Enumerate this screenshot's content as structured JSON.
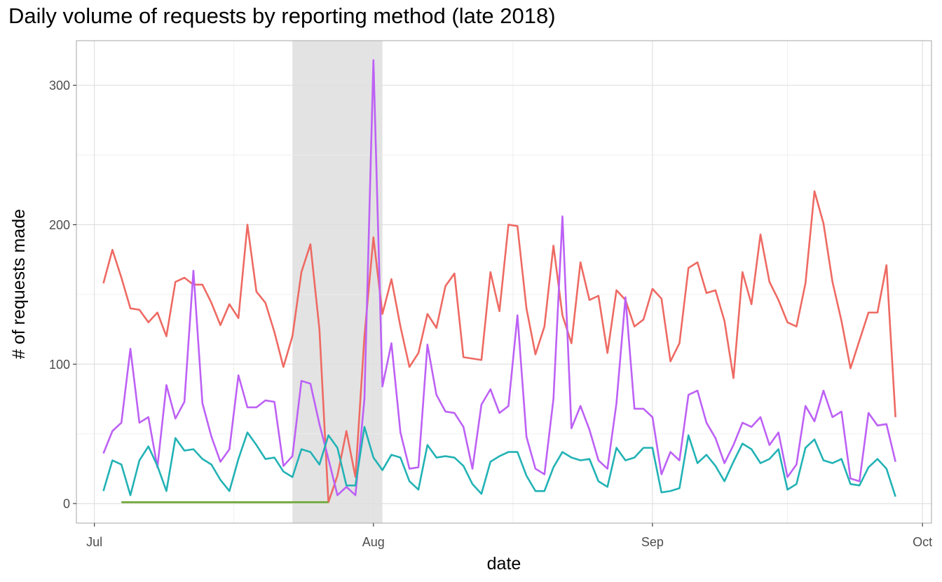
{
  "chart_data": {
    "type": "line",
    "title": "Daily volume of requests by reporting method (late 2018)",
    "xlabel": "date",
    "ylabel": "# of requests made",
    "x_start": "2018-07-01",
    "xlim": [
      "2018-06-29",
      "2018-10-02"
    ],
    "ylim": [
      -14,
      332
    ],
    "x_ticks": [
      {
        "date": "2018-07-01",
        "label": "Jul"
      },
      {
        "date": "2018-08-01",
        "label": "Aug"
      },
      {
        "date": "2018-09-01",
        "label": "Sep"
      },
      {
        "date": "2018-10-01",
        "label": "Oct"
      }
    ],
    "y_ticks": [
      0,
      100,
      200,
      300
    ],
    "grid": true,
    "legend": "none",
    "highlight_band": {
      "start": "2018-07-23",
      "end": "2018-08-02",
      "color": "#e3e3e3"
    },
    "series": [
      {
        "color": "#ee6a63",
        "start": "2018-07-02",
        "values": [
          158,
          182,
          162,
          140,
          139,
          130,
          137,
          120,
          159,
          162,
          157,
          157,
          144,
          128,
          143,
          133,
          200,
          152,
          144,
          123,
          98,
          120,
          166,
          186,
          125,
          1,
          20,
          52,
          19,
          120,
          191,
          136,
          161,
          127,
          98,
          108,
          136,
          126,
          156,
          165,
          105,
          104,
          103,
          166,
          138,
          200,
          199,
          140,
          107,
          127,
          185,
          135,
          115,
          173,
          146,
          149,
          108,
          153,
          146,
          127,
          132,
          154,
          147,
          102,
          115,
          169,
          173,
          151,
          153,
          131,
          90,
          166,
          143,
          193,
          159,
          146,
          130,
          127,
          158,
          224,
          201,
          159,
          131,
          97,
          117,
          137,
          137,
          171,
          62
        ]
      },
      {
        "color": "#bd61f5",
        "start": "2018-07-02",
        "values": [
          36,
          52,
          58,
          111,
          58,
          62,
          26,
          85,
          61,
          73,
          167,
          72,
          48,
          30,
          39,
          92,
          69,
          69,
          74,
          73,
          27,
          34,
          88,
          86,
          57,
          32,
          6,
          12,
          6,
          75,
          318,
          84,
          115,
          51,
          25,
          26,
          114,
          78,
          66,
          65,
          55,
          25,
          71,
          82,
          65,
          70,
          135,
          48,
          25,
          21,
          75,
          206,
          54,
          70,
          53,
          31,
          25,
          72,
          148,
          68,
          68,
          62,
          21,
          37,
          31,
          78,
          81,
          58,
          47,
          29,
          42,
          58,
          55,
          62,
          42,
          51,
          19,
          28,
          70,
          59,
          81,
          62,
          66,
          18,
          16,
          65,
          56,
          57,
          30
        ]
      },
      {
        "color": "#22b2b5",
        "start": "2018-07-02",
        "values": [
          9,
          31,
          28,
          6,
          31,
          41,
          27,
          9,
          47,
          38,
          39,
          32,
          28,
          17,
          9,
          32,
          51,
          42,
          32,
          33,
          23,
          19,
          39,
          37,
          28,
          49,
          40,
          13,
          13,
          55,
          33,
          24,
          35,
          33,
          16,
          10,
          42,
          33,
          34,
          33,
          27,
          14,
          7,
          30,
          34,
          37,
          37,
          20,
          9,
          9,
          26,
          37,
          33,
          31,
          32,
          16,
          12,
          40,
          31,
          33,
          40,
          40,
          8,
          9,
          11,
          49,
          29,
          35,
          27,
          16,
          30,
          43,
          39,
          29,
          32,
          39,
          10,
          14,
          40,
          46,
          31,
          29,
          32,
          14,
          13,
          26,
          32,
          25,
          5
        ]
      },
      {
        "color": "#6aa62e",
        "start": "2018-07-04",
        "values": [
          1,
          1,
          1,
          1,
          1,
          1,
          1,
          1,
          1,
          1,
          1,
          1,
          1,
          1,
          1,
          1,
          1,
          1,
          1,
          1,
          1,
          1,
          1,
          1
        ]
      }
    ]
  }
}
